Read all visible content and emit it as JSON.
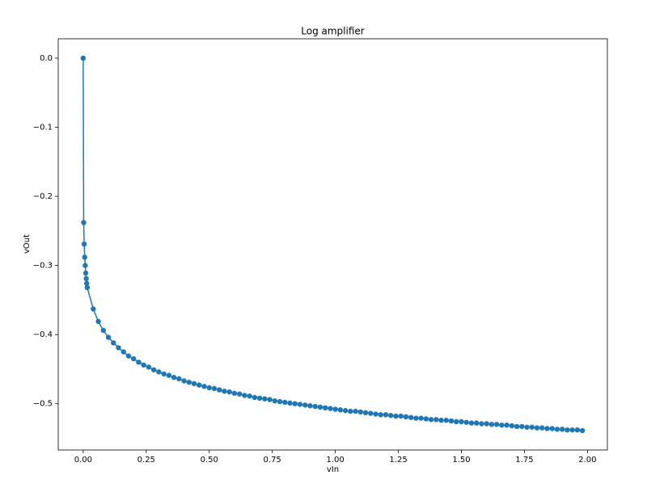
{
  "chart_data": {
    "type": "line",
    "title": "Log amplifier",
    "x_label": "vIn",
    "y_label": "vOut",
    "x": [
      0,
      0.002,
      0.004,
      0.006,
      0.008,
      0.01,
      0.012,
      0.014,
      0.016,
      0.04,
      0.06,
      0.08,
      0.1,
      0.12,
      0.14,
      0.16,
      0.18,
      0.2,
      0.22,
      0.24,
      0.26,
      0.28,
      0.3,
      0.32,
      0.34,
      0.36,
      0.38,
      0.4,
      0.42,
      0.44,
      0.46,
      0.48,
      0.5,
      0.52,
      0.54,
      0.56,
      0.58,
      0.6,
      0.62,
      0.64,
      0.66,
      0.68,
      0.7,
      0.72,
      0.74,
      0.76,
      0.78,
      0.8,
      0.82,
      0.84,
      0.86,
      0.88,
      0.9,
      0.92,
      0.94,
      0.96,
      0.98,
      1.0,
      1.02,
      1.04,
      1.06,
      1.08,
      1.1,
      1.12,
      1.14,
      1.16,
      1.18,
      1.2,
      1.22,
      1.24,
      1.26,
      1.28,
      1.3,
      1.32,
      1.34,
      1.36,
      1.38,
      1.4,
      1.42,
      1.44,
      1.46,
      1.48,
      1.5,
      1.52,
      1.54,
      1.56,
      1.58,
      1.6,
      1.62,
      1.64,
      1.66,
      1.68,
      1.7,
      1.72,
      1.74,
      1.76,
      1.78,
      1.8,
      1.82,
      1.84,
      1.86,
      1.88,
      1.9,
      1.92,
      1.94,
      1.96,
      1.98
    ],
    "series": [
      {
        "color": "#1f77b4",
        "values": [
          0,
          -0.238,
          -0.269,
          -0.288,
          -0.3,
          -0.311,
          -0.319,
          -0.326,
          -0.332,
          -0.363,
          -0.381,
          -0.394,
          -0.404,
          -0.412,
          -0.419,
          -0.425,
          -0.431,
          -0.435,
          -0.44,
          -0.444,
          -0.447,
          -0.451,
          -0.454,
          -0.457,
          -0.459,
          -0.462,
          -0.464,
          -0.467,
          -0.469,
          -0.471,
          -0.473,
          -0.475,
          -0.477,
          -0.478,
          -0.48,
          -0.482,
          -0.483,
          -0.485,
          -0.486,
          -0.488,
          -0.489,
          -0.491,
          -0.492,
          -0.493,
          -0.494,
          -0.496,
          -0.497,
          -0.498,
          -0.499,
          -0.5,
          -0.501,
          -0.502,
          -0.503,
          -0.504,
          -0.505,
          -0.506,
          -0.507,
          -0.508,
          -0.509,
          -0.51,
          -0.511,
          -0.511,
          -0.512,
          -0.513,
          -0.514,
          -0.515,
          -0.516,
          -0.516,
          -0.517,
          -0.518,
          -0.518,
          -0.519,
          -0.52,
          -0.521,
          -0.521,
          -0.522,
          -0.523,
          -0.523,
          -0.524,
          -0.524,
          -0.525,
          -0.526,
          -0.526,
          -0.527,
          -0.528,
          -0.528,
          -0.529,
          -0.529,
          -0.53,
          -0.53,
          -0.531,
          -0.531,
          -0.532,
          -0.533,
          -0.533,
          -0.534,
          -0.534,
          -0.535,
          -0.535,
          -0.536,
          -0.536,
          -0.537,
          -0.537,
          -0.538,
          -0.538,
          -0.538,
          -0.539
        ]
      }
    ],
    "xlim": [
      -0.099,
      2.079
    ],
    "ylim": [
      -0.567,
      0.028
    ],
    "xticks": [
      {
        "value": 0,
        "label": "0.00"
      },
      {
        "value": 0.25,
        "label": "0.25"
      },
      {
        "value": 0.5,
        "label": "0.50"
      },
      {
        "value": 0.75,
        "label": "0.75"
      },
      {
        "value": 1,
        "label": "1.00"
      },
      {
        "value": 1.25,
        "label": "1.25"
      },
      {
        "value": 1.5,
        "label": "1.50"
      },
      {
        "value": 1.75,
        "label": "1.75"
      },
      {
        "value": 2,
        "label": "2.00"
      }
    ],
    "yticks": [
      {
        "value": -0.5,
        "label": "−0.5"
      },
      {
        "value": -0.4,
        "label": "−0.4"
      },
      {
        "value": -0.3,
        "label": "−0.3"
      },
      {
        "value": -0.2,
        "label": "−0.2"
      },
      {
        "value": -0.1,
        "label": "−0.1"
      },
      {
        "value": 0,
        "label": "0.0"
      }
    ],
    "grid": false,
    "markers": true
  }
}
